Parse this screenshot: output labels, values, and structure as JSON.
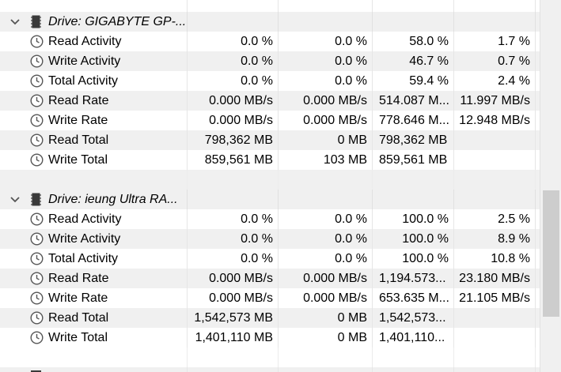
{
  "groups": [
    {
      "drive_label": "Drive: GIGABYTE GP-...",
      "rows": [
        {
          "label": "Read Activity",
          "v": [
            "0.0 %",
            "0.0 %",
            "58.0 %",
            "1.7 %"
          ]
        },
        {
          "label": "Write Activity",
          "v": [
            "0.0 %",
            "0.0 %",
            "46.7 %",
            "0.7 %"
          ]
        },
        {
          "label": "Total Activity",
          "v": [
            "0.0 %",
            "0.0 %",
            "59.4 %",
            "2.4 %"
          ]
        },
        {
          "label": "Read Rate",
          "v": [
            "0.000 MB/s",
            "0.000 MB/s",
            "514.087 M...",
            "11.997 MB/s"
          ]
        },
        {
          "label": "Write Rate",
          "v": [
            "0.000 MB/s",
            "0.000 MB/s",
            "778.646 M...",
            "12.948 MB/s"
          ]
        },
        {
          "label": "Read Total",
          "v": [
            "798,362 MB",
            "0 MB",
            "798,362 MB",
            ""
          ]
        },
        {
          "label": "Write Total",
          "v": [
            "859,561 MB",
            "103 MB",
            "859,561 MB",
            ""
          ]
        }
      ]
    },
    {
      "drive_label": "Drive: ieung Ultra RA...",
      "rows": [
        {
          "label": "Read Activity",
          "v": [
            "0.0 %",
            "0.0 %",
            "100.0 %",
            "2.5 %"
          ]
        },
        {
          "label": "Write Activity",
          "v": [
            "0.0 %",
            "0.0 %",
            "100.0 %",
            "8.9 %"
          ]
        },
        {
          "label": "Total Activity",
          "v": [
            "0.0 %",
            "0.0 %",
            "100.0 %",
            "10.8 %"
          ]
        },
        {
          "label": "Read Rate",
          "v": [
            "0.000 MB/s",
            "0.000 MB/s",
            "1,194.573...",
            "23.180 MB/s"
          ]
        },
        {
          "label": "Write Rate",
          "v": [
            "0.000 MB/s",
            "0.000 MB/s",
            "653.635 M...",
            "21.105 MB/s"
          ]
        },
        {
          "label": "Read Total",
          "v": [
            "1,542,573 MB",
            "0 MB",
            "1,542,573...",
            ""
          ]
        },
        {
          "label": "Write Total",
          "v": [
            "1,401,110 MB",
            "0 MB",
            "1,401,110...",
            ""
          ]
        }
      ]
    }
  ],
  "colors": {
    "row_alt": "#f0f0f0",
    "scrollbar_thumb": "#cdcdcd",
    "clock_icon": "#555555"
  },
  "icons": {
    "expand": "chevron-down-icon",
    "drive": "drive-icon",
    "sensor": "clock-icon"
  }
}
